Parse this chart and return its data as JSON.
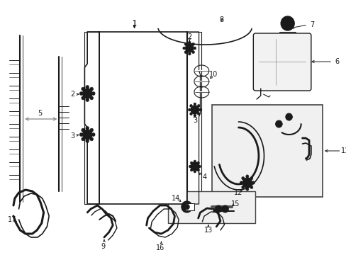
{
  "bg_color": "#ffffff",
  "line_color": "#1a1a1a",
  "gray_color": "#888888",
  "light_gray": "#e8e8e8",
  "fig_w": 4.89,
  "fig_h": 3.6,
  "dpi": 100
}
